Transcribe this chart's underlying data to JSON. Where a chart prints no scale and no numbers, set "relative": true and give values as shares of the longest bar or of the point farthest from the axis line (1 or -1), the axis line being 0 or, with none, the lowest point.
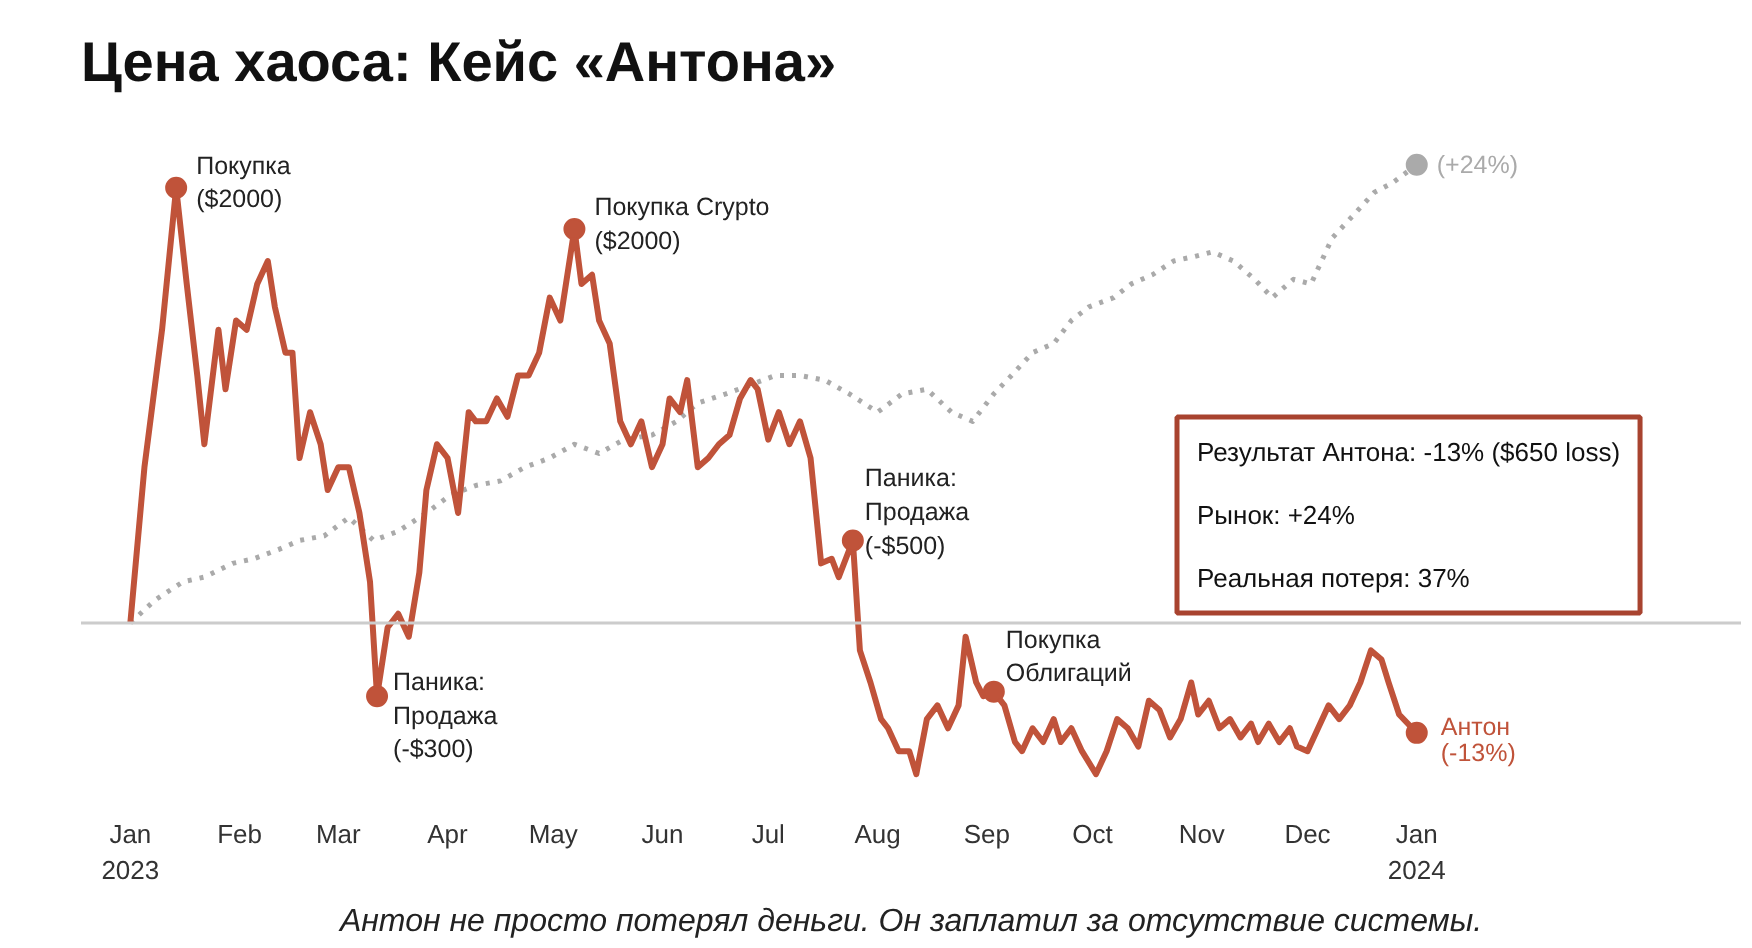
{
  "chart_data": {
    "type": "line",
    "title": "Цена хаоса: Кейс «Антона»",
    "relative": true,
    "grid": false,
    "tick_labels": "x",
    "xlim": [
      "2022-12-18",
      "2024-04-02"
    ],
    "xticks": [
      {
        "value": "2023-01-01",
        "label": "Jan\n2023"
      },
      {
        "value": "2023-02-01",
        "label": "Feb"
      },
      {
        "value": "2023-03-01",
        "label": "Mar"
      },
      {
        "value": "2023-04-01",
        "label": "Apr"
      },
      {
        "value": "2023-05-01",
        "label": "May"
      },
      {
        "value": "2023-06-01",
        "label": "Jun"
      },
      {
        "value": "2023-07-01",
        "label": "Jul"
      },
      {
        "value": "2023-08-01",
        "label": "Aug"
      },
      {
        "value": "2023-09-01",
        "label": "Sep"
      },
      {
        "value": "2023-10-01",
        "label": "Oct"
      },
      {
        "value": "2023-11-01",
        "label": "Nov"
      },
      {
        "value": "2023-12-01",
        "label": "Dec"
      },
      {
        "value": "2024-01-01",
        "label": "Jan\n2024"
      }
    ],
    "ref_lines": [
      {
        "axis": "y",
        "value": 0,
        "color": "#cccccc"
      }
    ],
    "series": [
      {
        "color": "#aaaaaa",
        "line_style": "dotted",
        "x": [
          "2023-01-01",
          "2023-01-08",
          "2023-01-16",
          "2023-01-22",
          "2023-01-30",
          "2023-02-05",
          "2023-02-12",
          "2023-02-18",
          "2023-02-25",
          "2023-03-04",
          "2023-03-11",
          "2023-03-18",
          "2023-03-26",
          "2023-04-02",
          "2023-04-09",
          "2023-04-16",
          "2023-04-23",
          "2023-04-30",
          "2023-05-07",
          "2023-05-14",
          "2023-05-21",
          "2023-05-29",
          "2023-06-05",
          "2023-06-11",
          "2023-06-19",
          "2023-06-26",
          "2023-07-03",
          "2023-07-10",
          "2023-07-17",
          "2023-07-24",
          "2023-08-01",
          "2023-08-08",
          "2023-08-15",
          "2023-08-22",
          "2023-08-28",
          "2023-09-03",
          "2023-09-08",
          "2023-09-14",
          "2023-09-20",
          "2023-09-25",
          "2023-09-30",
          "2023-10-07",
          "2023-10-12",
          "2023-10-18",
          "2023-10-24",
          "2023-10-30",
          "2023-11-04",
          "2023-11-10",
          "2023-11-16",
          "2023-11-21",
          "2023-11-27",
          "2023-12-02",
          "2023-12-08",
          "2023-12-14",
          "2023-12-20",
          "2023-12-25",
          "2024-01-01"
        ],
        "values": [
          0,
          0.05,
          0.09,
          0.1,
          0.13,
          0.14,
          0.16,
          0.18,
          0.19,
          0.23,
          0.18,
          0.2,
          0.24,
          0.28,
          0.3,
          0.31,
          0.34,
          0.36,
          0.39,
          0.37,
          0.4,
          0.41,
          0.44,
          0.48,
          0.5,
          0.52,
          0.54,
          0.54,
          0.53,
          0.5,
          0.46,
          0.5,
          0.51,
          0.46,
          0.44,
          0.5,
          0.54,
          0.59,
          0.61,
          0.66,
          0.69,
          0.71,
          0.74,
          0.76,
          0.79,
          0.8,
          0.81,
          0.79,
          0.75,
          0.71,
          0.75,
          0.74,
          0.84,
          0.89,
          0.94,
          0.96,
          1.0
        ]
      },
      {
        "name": "Антон",
        "color": "#c0533a",
        "line_style": "solid",
        "x": [
          "2023-01-01",
          "2023-01-05",
          "2023-01-10",
          "2023-01-14",
          "2023-01-17",
          "2023-01-20",
          "2023-01-22",
          "2023-01-26",
          "2023-01-28",
          "2023-01-31",
          "2023-02-03",
          "2023-02-06",
          "2023-02-09",
          "2023-02-11",
          "2023-02-14",
          "2023-02-16",
          "2023-02-18",
          "2023-02-21",
          "2023-02-24",
          "2023-02-26",
          "2023-03-01",
          "2023-03-04",
          "2023-03-07",
          "2023-03-10",
          "2023-03-12",
          "2023-03-15",
          "2023-03-18",
          "2023-03-21",
          "2023-03-24",
          "2023-03-26",
          "2023-03-29",
          "2023-04-01",
          "2023-04-04",
          "2023-04-07",
          "2023-04-09",
          "2023-04-12",
          "2023-04-15",
          "2023-04-18",
          "2023-04-21",
          "2023-04-24",
          "2023-04-27",
          "2023-04-30",
          "2023-05-03",
          "2023-05-05",
          "2023-05-07",
          "2023-05-09",
          "2023-05-12",
          "2023-05-14",
          "2023-05-17",
          "2023-05-20",
          "2023-05-23",
          "2023-05-26",
          "2023-05-29",
          "2023-06-01",
          "2023-06-03",
          "2023-06-06",
          "2023-06-08",
          "2023-06-11",
          "2023-06-14",
          "2023-06-17",
          "2023-06-20",
          "2023-06-23",
          "2023-06-26",
          "2023-06-28",
          "2023-07-01",
          "2023-07-04",
          "2023-07-07",
          "2023-07-10",
          "2023-07-13",
          "2023-07-16",
          "2023-07-19",
          "2023-07-21",
          "2023-07-25",
          "2023-07-27",
          "2023-07-30",
          "2023-08-02",
          "2023-08-04",
          "2023-08-07",
          "2023-08-10",
          "2023-08-12",
          "2023-08-15",
          "2023-08-18",
          "2023-08-21",
          "2023-08-24",
          "2023-08-26",
          "2023-08-29",
          "2023-08-31",
          "2023-09-03",
          "2023-09-06",
          "2023-09-09",
          "2023-09-11",
          "2023-09-14",
          "2023-09-17",
          "2023-09-20",
          "2023-09-22",
          "2023-09-25",
          "2023-09-28",
          "2023-10-02",
          "2023-10-05",
          "2023-10-08",
          "2023-10-11",
          "2023-10-14",
          "2023-10-17",
          "2023-10-20",
          "2023-10-23",
          "2023-10-26",
          "2023-10-29",
          "2023-10-31",
          "2023-11-03",
          "2023-11-06",
          "2023-11-09",
          "2023-11-12",
          "2023-11-15",
          "2023-11-17",
          "2023-11-20",
          "2023-11-23",
          "2023-11-26",
          "2023-11-28",
          "2023-12-01",
          "2023-12-04",
          "2023-12-07",
          "2023-12-10",
          "2023-12-13",
          "2023-12-16",
          "2023-12-19",
          "2023-12-22",
          "2023-12-24",
          "2023-12-27",
          "2024-01-01"
        ],
        "values": [
          0,
          0.34,
          0.64,
          0.95,
          0.74,
          0.54,
          0.39,
          0.64,
          0.51,
          0.66,
          0.64,
          0.74,
          0.79,
          0.69,
          0.59,
          0.59,
          0.36,
          0.46,
          0.39,
          0.29,
          0.34,
          0.34,
          0.24,
          0.09,
          -0.16,
          -0.01,
          0.02,
          -0.03,
          0.11,
          0.29,
          0.39,
          0.36,
          0.24,
          0.46,
          0.44,
          0.44,
          0.49,
          0.45,
          0.54,
          0.54,
          0.59,
          0.71,
          0.66,
          0.76,
          0.86,
          0.74,
          0.76,
          0.66,
          0.61,
          0.44,
          0.39,
          0.44,
          0.34,
          0.39,
          0.49,
          0.46,
          0.53,
          0.34,
          0.36,
          0.39,
          0.41,
          0.49,
          0.53,
          0.51,
          0.4,
          0.46,
          0.39,
          0.44,
          0.36,
          0.13,
          0.14,
          0.1,
          0.18,
          -0.06,
          -0.13,
          -0.21,
          -0.23,
          -0.28,
          -0.28,
          -0.33,
          -0.21,
          -0.18,
          -0.23,
          -0.18,
          -0.03,
          -0.13,
          -0.16,
          -0.15,
          -0.18,
          -0.26,
          -0.28,
          -0.23,
          -0.26,
          -0.21,
          -0.26,
          -0.23,
          -0.28,
          -0.33,
          -0.28,
          -0.21,
          -0.23,
          -0.27,
          -0.17,
          -0.19,
          -0.25,
          -0.21,
          -0.13,
          -0.2,
          -0.17,
          -0.23,
          -0.21,
          -0.25,
          -0.22,
          -0.26,
          -0.22,
          -0.26,
          -0.23,
          -0.27,
          -0.28,
          -0.23,
          -0.18,
          -0.21,
          -0.18,
          -0.13,
          -0.06,
          -0.08,
          -0.13,
          -0.2,
          -0.24
        ]
      }
    ],
    "annotations": [
      {
        "text": "Покупка\n($2000)",
        "x": "2023-01-14",
        "y": 0.95
      },
      {
        "text": "Паника:\nПродажа\n(-$300)",
        "x": "2023-03-12",
        "y": -0.16
      },
      {
        "text": "Покупка Crypto\n($2000)",
        "x": "2023-05-07",
        "y": 0.86
      },
      {
        "text": "Паника:\nПродажа\n(-$500)",
        "x": "2023-07-25",
        "y": 0.18
      },
      {
        "text": "Покупка\nОблигаций",
        "x": "2023-09-03",
        "y": -0.15
      },
      {
        "text": "(-13%)",
        "x": "2024-01-01",
        "y": -0.24
      },
      {
        "text": "(+24%)",
        "x": "2024-01-01",
        "y": 1.0
      },
      "Результат Антона: -13% ($650 loss)",
      "Рынок: +24%",
      "Реальная потеря: 37%",
      "Антон не просто потерял деньги. Он заплатил за отсутствие системы."
    ]
  }
}
